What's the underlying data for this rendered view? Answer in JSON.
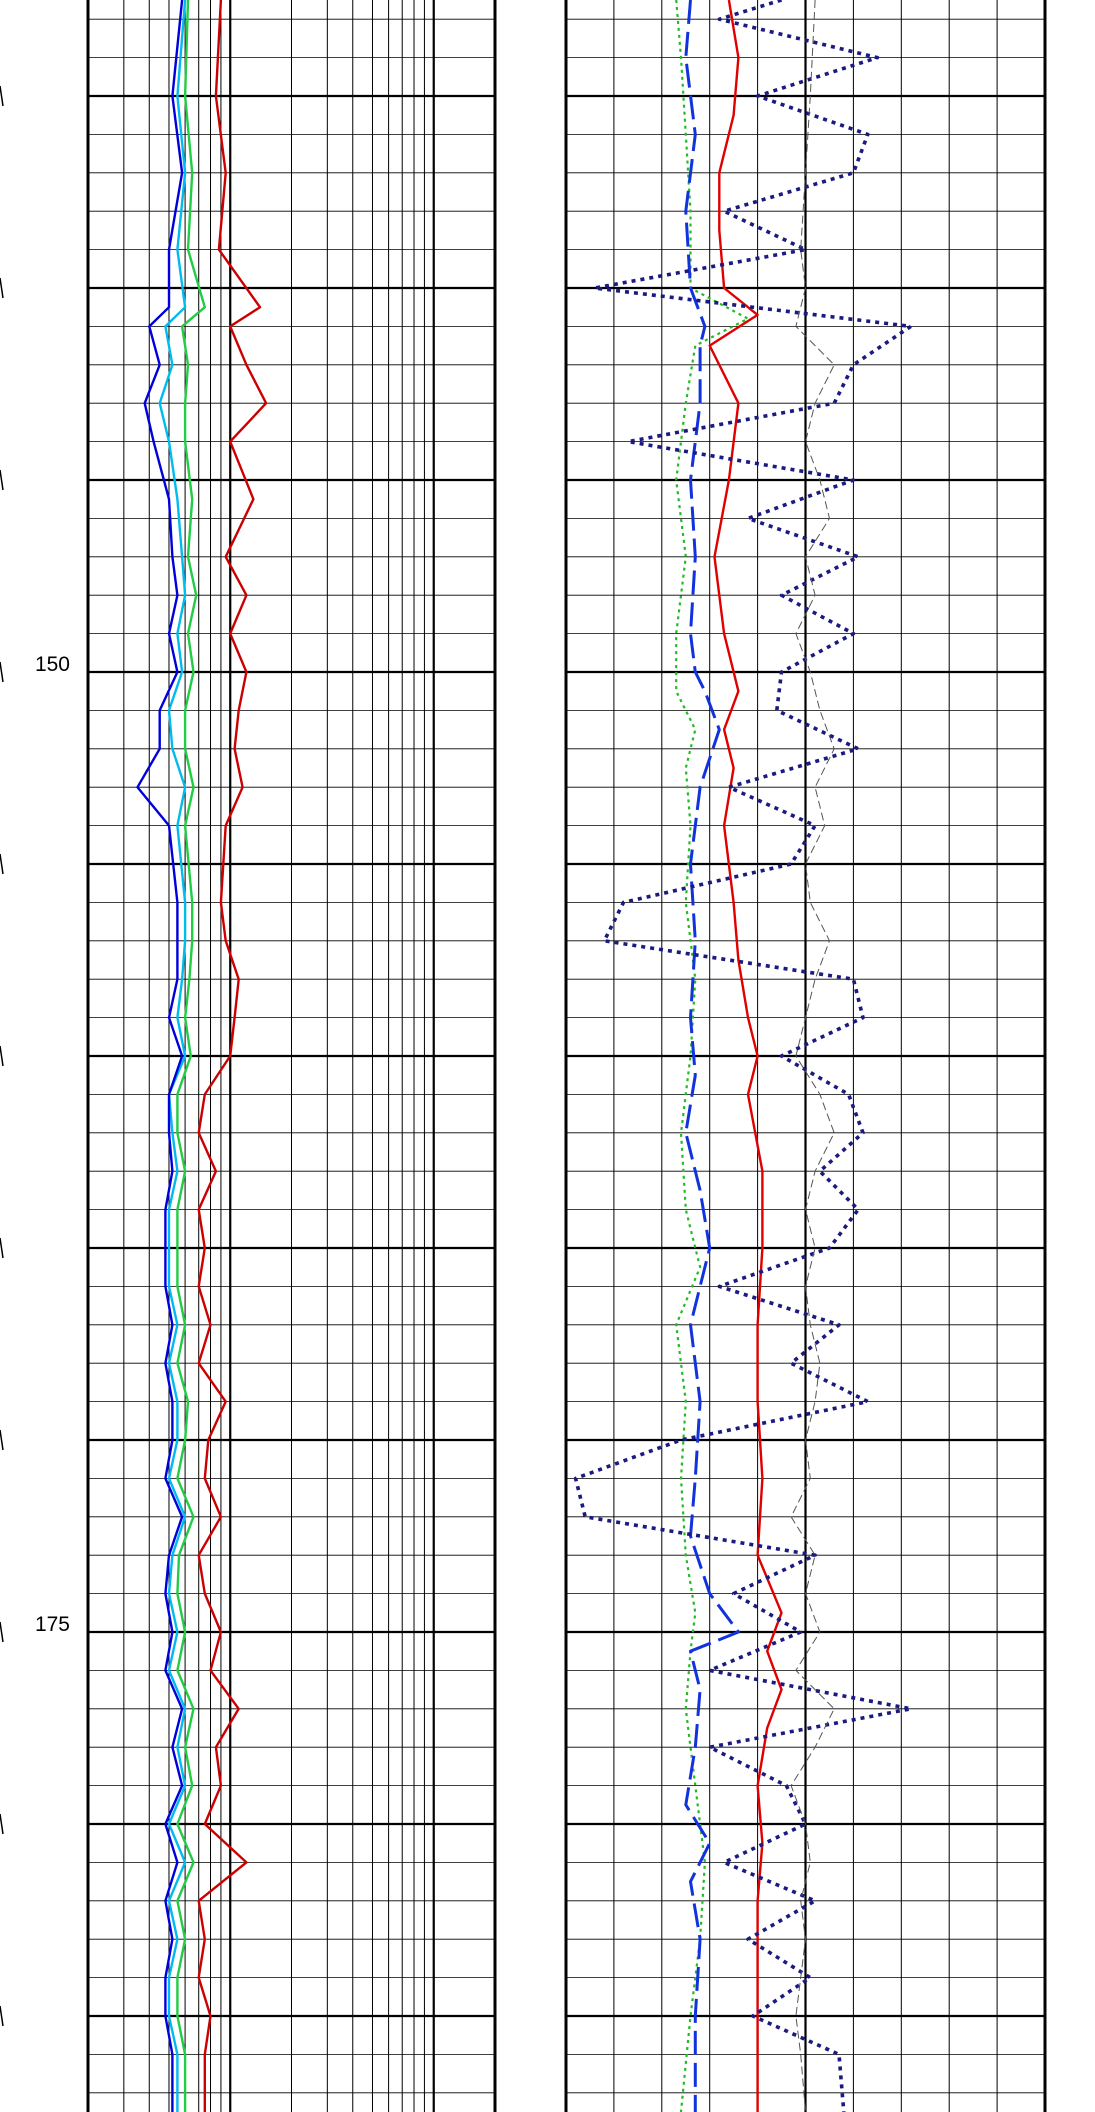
{
  "chart_data": {
    "type": "line",
    "depth_range": [
      132.5,
      187.5
    ],
    "depth_labels": [
      {
        "depth": 150,
        "text": "150"
      },
      {
        "depth": 175,
        "text": "175"
      }
    ],
    "major_grid_depths": [
      135,
      140,
      145,
      150,
      155,
      160,
      165,
      170,
      175,
      180,
      185
    ],
    "minor_grid_step": 1,
    "grid": true,
    "tracks": [
      {
        "name": "resistivity-track",
        "scale": "log",
        "decades": 2
      },
      {
        "name": "porosity-track",
        "scale": "linear",
        "divisions": 10
      }
    ],
    "track1_x_range": [
      0.2,
      20
    ],
    "track2_x_range": [
      0,
      10
    ],
    "series": [
      {
        "track": 1,
        "color": "#cc0000",
        "style": "solid",
        "depth": [
          132.5,
          135,
          137,
          139,
          140.5,
          141,
          142,
          143,
          144,
          145.5,
          147,
          148,
          149,
          150,
          151,
          152,
          153,
          154,
          156,
          157,
          158,
          159,
          160,
          161,
          162,
          163,
          164,
          165,
          166,
          167,
          168,
          169,
          170,
          171,
          172,
          173,
          174,
          175,
          176,
          177,
          178,
          179,
          180,
          181,
          182,
          183,
          184,
          185,
          186,
          187.5
        ],
        "values": [
          0.9,
          0.85,
          0.95,
          0.88,
          1.4,
          1.0,
          1.2,
          1.5,
          1.0,
          1.3,
          0.95,
          1.2,
          1.0,
          1.2,
          1.1,
          1.05,
          1.15,
          0.95,
          0.9,
          0.95,
          1.1,
          1.05,
          1.0,
          0.75,
          0.7,
          0.85,
          0.7,
          0.75,
          0.7,
          0.8,
          0.7,
          0.95,
          0.78,
          0.75,
          0.9,
          0.7,
          0.75,
          0.9,
          0.8,
          1.1,
          0.85,
          0.9,
          0.75,
          1.2,
          0.7,
          0.75,
          0.7,
          0.8,
          0.75,
          0.75
        ]
      },
      {
        "track": 1,
        "color": "#00bbee",
        "style": "solid",
        "depth": [
          132.5,
          135,
          137,
          139,
          140.5,
          141,
          142,
          143,
          144,
          145.5,
          147,
          148,
          149,
          150,
          151,
          152,
          153,
          154,
          156,
          157,
          158,
          159,
          160,
          161,
          162,
          163,
          164,
          165,
          166,
          167,
          168,
          169,
          170,
          171,
          172,
          173,
          174,
          175,
          176,
          177,
          178,
          179,
          180,
          181,
          182,
          183,
          184,
          185,
          186,
          187.5
        ],
        "values": [
          0.6,
          0.55,
          0.6,
          0.55,
          0.6,
          0.48,
          0.52,
          0.45,
          0.5,
          0.55,
          0.58,
          0.6,
          0.55,
          0.58,
          0.5,
          0.52,
          0.6,
          0.55,
          0.6,
          0.6,
          0.58,
          0.55,
          0.6,
          0.5,
          0.52,
          0.55,
          0.5,
          0.5,
          0.5,
          0.55,
          0.5,
          0.55,
          0.55,
          0.5,
          0.6,
          0.52,
          0.5,
          0.55,
          0.5,
          0.6,
          0.55,
          0.6,
          0.5,
          0.6,
          0.5,
          0.55,
          0.5,
          0.5,
          0.55,
          0.55
        ]
      },
      {
        "track": 1,
        "color": "#22cc44",
        "style": "solid",
        "depth": [
          132.5,
          135,
          137,
          139,
          140.5,
          141,
          142,
          143,
          144,
          145.5,
          147,
          148,
          149,
          150,
          151,
          152,
          153,
          154,
          156,
          157,
          158,
          159,
          160,
          161,
          162,
          163,
          164,
          165,
          166,
          167,
          168,
          169,
          170,
          171,
          172,
          173,
          174,
          175,
          176,
          177,
          178,
          179,
          180,
          181,
          182,
          183,
          184,
          185,
          186,
          187.5
        ],
        "values": [
          0.62,
          0.6,
          0.65,
          0.62,
          0.75,
          0.58,
          0.62,
          0.6,
          0.6,
          0.65,
          0.62,
          0.68,
          0.62,
          0.66,
          0.6,
          0.6,
          0.66,
          0.6,
          0.65,
          0.65,
          0.63,
          0.6,
          0.64,
          0.55,
          0.55,
          0.6,
          0.55,
          0.55,
          0.55,
          0.6,
          0.55,
          0.62,
          0.6,
          0.55,
          0.66,
          0.56,
          0.55,
          0.6,
          0.55,
          0.66,
          0.6,
          0.65,
          0.55,
          0.66,
          0.55,
          0.6,
          0.55,
          0.55,
          0.6,
          0.6
        ]
      },
      {
        "track": 1,
        "color": "#0000dd",
        "style": "solid",
        "depth": [
          132.5,
          135,
          137,
          139,
          140.5,
          141,
          142,
          143,
          144,
          145.5,
          147,
          148,
          149,
          150,
          151,
          152,
          153,
          154,
          156,
          157,
          158,
          159,
          160,
          161,
          162,
          163,
          164,
          165,
          166,
          167,
          168,
          169,
          170,
          171,
          172,
          173,
          174,
          175,
          176,
          177,
          178,
          179,
          180,
          181,
          182,
          183,
          184,
          185,
          186,
          187.5
        ],
        "values": [
          0.58,
          0.52,
          0.58,
          0.5,
          0.5,
          0.4,
          0.45,
          0.38,
          0.42,
          0.5,
          0.52,
          0.55,
          0.5,
          0.55,
          0.45,
          0.45,
          0.35,
          0.5,
          0.55,
          0.55,
          0.55,
          0.5,
          0.58,
          0.5,
          0.5,
          0.52,
          0.48,
          0.48,
          0.48,
          0.52,
          0.48,
          0.52,
          0.52,
          0.48,
          0.58,
          0.5,
          0.48,
          0.52,
          0.48,
          0.58,
          0.52,
          0.58,
          0.48,
          0.55,
          0.48,
          0.52,
          0.48,
          0.48,
          0.52,
          0.52
        ]
      },
      {
        "track": 2,
        "color": "#e00000",
        "style": "solid",
        "depth": [
          132.5,
          134,
          135.5,
          137,
          138.5,
          140,
          140.7,
          141.5,
          143,
          145,
          147,
          149,
          150.5,
          151.5,
          152.5,
          154,
          156,
          157.5,
          159,
          160,
          161,
          163,
          165,
          167,
          169,
          171,
          173,
          174.5,
          175.5,
          176.5,
          177.5,
          179,
          180.5,
          182,
          184,
          186,
          187.5
        ],
        "values": [
          3.4,
          3.6,
          3.5,
          3.2,
          3.2,
          3.3,
          4.0,
          3.0,
          3.6,
          3.4,
          3.1,
          3.3,
          3.6,
          3.3,
          3.5,
          3.3,
          3.5,
          3.6,
          3.8,
          4.0,
          3.8,
          4.1,
          4.1,
          4.0,
          4.0,
          4.1,
          4.0,
          4.5,
          4.2,
          4.5,
          4.2,
          4.0,
          4.1,
          4.0,
          4.0,
          4.0,
          4.0
        ]
      },
      {
        "track": 2,
        "color": "#22bb22",
        "style": "dotted",
        "depth": [
          132.5,
          134,
          136,
          138,
          140,
          140.8,
          141.5,
          143,
          145,
          147,
          149,
          150.5,
          151.5,
          152.5,
          154,
          156,
          158,
          160,
          162,
          164,
          165.5,
          167,
          169,
          171,
          173,
          174.5,
          175.5,
          177,
          178,
          179,
          181,
          183,
          185,
          187.5
        ],
        "values": [
          2.3,
          2.4,
          2.5,
          2.6,
          2.6,
          3.8,
          2.7,
          2.5,
          2.3,
          2.5,
          2.3,
          2.3,
          2.7,
          2.5,
          2.6,
          2.5,
          2.7,
          2.6,
          2.4,
          2.5,
          2.8,
          2.3,
          2.5,
          2.4,
          2.5,
          2.7,
          2.6,
          2.5,
          2.6,
          2.7,
          2.9,
          2.8,
          2.6,
          2.4
        ]
      },
      {
        "track": 2,
        "color": "#1133dd",
        "style": "dashed",
        "depth": [
          132.5,
          134,
          136,
          138,
          140,
          141,
          141.5,
          143,
          145,
          147,
          149,
          150,
          150.5,
          151.5,
          153,
          155,
          157,
          159,
          160.5,
          162,
          163.5,
          165,
          166,
          167,
          169,
          171,
          172.5,
          174,
          175,
          175.5,
          176.5,
          178,
          179.5,
          180.5,
          181.5,
          183,
          185,
          187.5
        ],
        "values": [
          2.6,
          2.5,
          2.7,
          2.5,
          2.6,
          2.9,
          2.8,
          2.8,
          2.6,
          2.7,
          2.6,
          2.7,
          2.9,
          3.2,
          2.8,
          2.6,
          2.7,
          2.6,
          2.7,
          2.5,
          2.8,
          3.0,
          2.8,
          2.6,
          2.8,
          2.7,
          2.6,
          3.0,
          3.6,
          2.6,
          2.8,
          2.7,
          2.5,
          3.0,
          2.6,
          2.8,
          2.7,
          2.7
        ]
      },
      {
        "track": 2,
        "color": "#1a1a80",
        "style": "dotted-heavy",
        "depth": [
          132.5,
          133,
          134,
          135,
          136,
          137,
          138,
          139,
          140,
          141,
          142,
          143,
          144,
          145,
          146,
          147,
          148,
          149,
          150,
          151,
          152,
          153,
          154,
          155,
          156,
          157,
          158,
          159,
          160,
          161,
          162,
          163,
          164,
          165,
          166,
          167,
          168,
          169,
          170,
          171,
          172,
          173,
          174,
          175,
          176,
          177,
          178,
          179,
          180,
          181,
          182,
          183,
          184,
          185,
          186,
          187.5
        ],
        "values": [
          4.5,
          3.2,
          6.5,
          4.0,
          6.3,
          6.0,
          3.3,
          5.0,
          0.6,
          7.2,
          6.0,
          5.6,
          1.3,
          6.0,
          3.8,
          6.1,
          4.5,
          6.0,
          4.5,
          4.4,
          6.1,
          3.4,
          5.2,
          4.7,
          1.2,
          0.8,
          6.0,
          6.2,
          4.5,
          5.9,
          6.2,
          5.3,
          6.1,
          5.5,
          3.2,
          5.7,
          4.7,
          6.3,
          2.4,
          0.2,
          0.4,
          5.2,
          3.5,
          4.9,
          3.0,
          7.2,
          3.0,
          4.6,
          5.0,
          3.3,
          5.2,
          3.8,
          5.1,
          3.9,
          5.7,
          5.8
        ]
      },
      {
        "track": 2,
        "color": "#555555",
        "style": "thin-dashed",
        "depth": [
          132.5,
          135,
          137,
          139,
          140,
          141,
          142,
          143,
          144,
          145,
          146,
          147,
          148,
          149,
          150,
          151,
          152,
          153,
          154,
          155,
          156,
          157,
          158,
          159,
          160,
          161,
          162,
          163,
          164,
          165,
          166,
          167,
          168,
          169,
          170,
          171,
          172,
          173,
          174,
          175,
          176,
          177,
          178,
          179,
          180,
          181,
          182,
          183,
          184,
          185,
          186,
          187.5
        ],
        "values": [
          5.2,
          5.1,
          5.0,
          4.9,
          5.0,
          4.8,
          5.6,
          5.2,
          5.0,
          5.3,
          5.5,
          5.0,
          5.2,
          4.8,
          5.1,
          5.3,
          5.6,
          5.2,
          5.4,
          5.0,
          5.1,
          5.5,
          5.2,
          5.0,
          4.8,
          5.3,
          5.6,
          5.2,
          5.0,
          5.2,
          5.0,
          5.1,
          5.3,
          5.2,
          5.0,
          5.1,
          4.7,
          5.2,
          5.0,
          5.3,
          4.8,
          5.6,
          5.2,
          4.7,
          5.0,
          5.1,
          4.9,
          5.0,
          4.9,
          4.8,
          4.9,
          5.0
        ]
      }
    ]
  }
}
